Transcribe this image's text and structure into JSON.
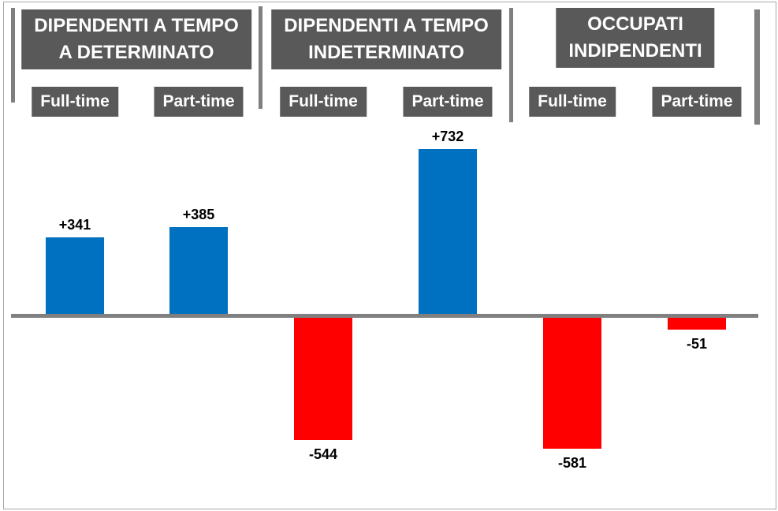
{
  "chart_data": {
    "type": "bar",
    "title": "",
    "grid": false,
    "legend": false,
    "baseline_value": 0,
    "ylim": [
      -700,
      800
    ],
    "groups": [
      {
        "title_lines": [
          "DIPENDENTI A TEMPO",
          "A DETERMINATO"
        ],
        "bars": [
          {
            "category": "Full-time",
            "value": 341,
            "label": "+341",
            "color": "#0070C0"
          },
          {
            "category": "Part-time",
            "value": 385,
            "label": "+385",
            "color": "#0070C0"
          }
        ]
      },
      {
        "title_lines": [
          "DIPENDENTI A TEMPO",
          "INDETERMINATO"
        ],
        "bars": [
          {
            "category": "Full-time",
            "value": -544,
            "label": "-544",
            "color": "#FF0000"
          },
          {
            "category": "Part-time",
            "value": 732,
            "label": "+732",
            "color": "#0070C0"
          }
        ]
      },
      {
        "title_lines": [
          "OCCUPATI",
          "INDIPENDENTI"
        ],
        "bars": [
          {
            "category": "Full-time",
            "value": -581,
            "label": "-581",
            "color": "#FF0000"
          },
          {
            "category": "Part-time",
            "value": -51,
            "label": "-51",
            "color": "#FF0000"
          }
        ]
      }
    ]
  },
  "colors": {
    "positive_bar": "#0070C0",
    "negative_bar": "#FF0000",
    "header_background": "#595959",
    "header_text": "#FFFFFF",
    "axis_line": "#808080",
    "divider": "#7F7F7F",
    "value_label_text": "#000000",
    "frame_border": "#A6A6A6",
    "background": "#FFFFFF"
  }
}
